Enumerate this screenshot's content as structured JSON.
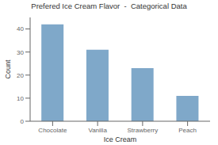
{
  "chart_data": {
    "type": "bar",
    "title": "Prefered Ice Cream Flavor  -  Categorical Data",
    "xlabel": "Ice Cream",
    "ylabel": "Count",
    "categories": [
      "Chocolate",
      "Vanilla",
      "Strawberry",
      "Peach"
    ],
    "values": [
      42,
      31,
      23,
      11
    ],
    "color": "#7fa8c9",
    "ylim": [
      0,
      45
    ],
    "yticks": [
      0,
      10,
      20,
      30,
      40
    ],
    "grid": false
  }
}
